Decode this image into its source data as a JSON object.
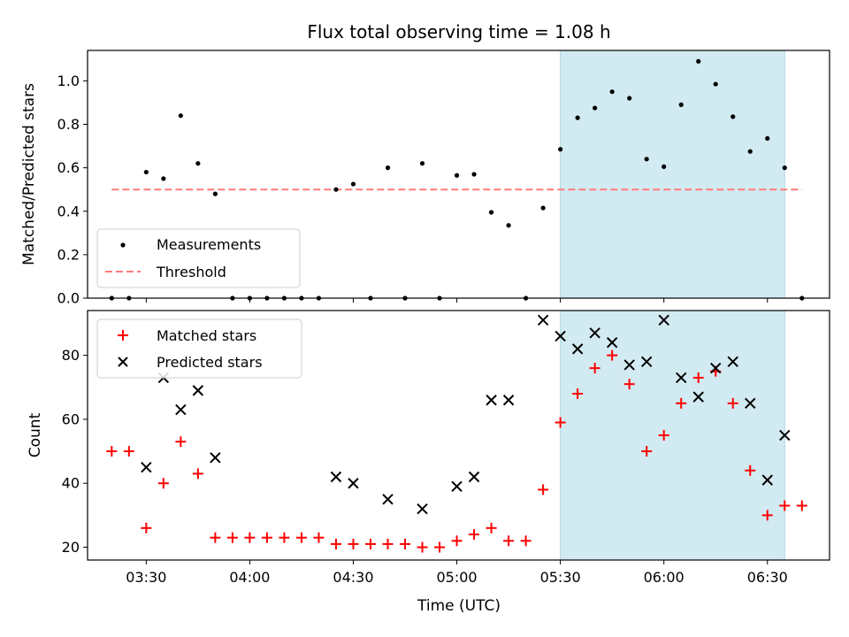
{
  "chart_data": [
    {
      "type": "scatter",
      "title": "Flux total observing time = 1.08 h",
      "xlabel": "",
      "ylabel": "Matched/Predicted stars",
      "xlim": [
        "03:13",
        "06:48"
      ],
      "ylim": [
        0,
        1.14
      ],
      "yticks": [
        "0.0",
        "0.2",
        "0.4",
        "0.6",
        "0.8",
        "1.0"
      ],
      "grid": false,
      "legend_position": "lower-left",
      "highlight_span": {
        "start": "05:30",
        "end": "06:35",
        "color": "#add8e6"
      },
      "threshold": {
        "name": "Threshold",
        "value": 0.5,
        "start": "03:20",
        "end": "06:40",
        "color": "#ff7b7b"
      },
      "series": [
        {
          "name": "Measurements",
          "color": "#000000",
          "marker": "dot",
          "x": [
            "03:20",
            "03:25",
            "03:30",
            "03:35",
            "03:40",
            "03:45",
            "03:50",
            "03:55",
            "04:00",
            "04:05",
            "04:10",
            "04:15",
            "04:20",
            "04:25",
            "04:30",
            "04:35",
            "04:40",
            "04:45",
            "04:50",
            "04:55",
            "05:00",
            "05:05",
            "05:10",
            "05:15",
            "05:20",
            "05:25",
            "05:30",
            "05:35",
            "05:40",
            "05:45",
            "05:50",
            "05:55",
            "06:00",
            "06:05",
            "06:10",
            "06:15",
            "06:20",
            "06:25",
            "06:30",
            "06:35",
            "06:40"
          ],
          "y": [
            0.0,
            0.0,
            0.58,
            0.55,
            0.84,
            0.62,
            0.48,
            0.0,
            0.0,
            0.0,
            0.0,
            0.0,
            0.0,
            0.5,
            0.525,
            0.0,
            0.6,
            0.0,
            0.62,
            0.0,
            0.565,
            0.57,
            0.395,
            0.335,
            0.0,
            0.415,
            0.685,
            0.83,
            0.875,
            0.95,
            0.92,
            0.64,
            0.605,
            0.89,
            1.09,
            0.985,
            0.835,
            0.675,
            0.735,
            0.6,
            0.0
          ]
        }
      ]
    },
    {
      "type": "scatter",
      "xlabel": "Time (UTC)",
      "ylabel": "Count",
      "xlim": [
        "03:13",
        "06:48"
      ],
      "ylim": [
        16,
        94
      ],
      "xticks": [
        "03:30",
        "04:00",
        "04:30",
        "05:00",
        "05:30",
        "06:00",
        "06:30"
      ],
      "yticks": [
        "20",
        "40",
        "60",
        "80"
      ],
      "grid": false,
      "legend_position": "upper-left",
      "highlight_span": {
        "start": "05:30",
        "end": "06:35",
        "color": "#add8e6"
      },
      "series": [
        {
          "name": "Matched stars",
          "color": "#ff0000",
          "marker": "plus",
          "x": [
            "03:20",
            "03:25",
            "03:30",
            "03:35",
            "03:40",
            "03:45",
            "03:50",
            "03:55",
            "04:00",
            "04:05",
            "04:10",
            "04:15",
            "04:20",
            "04:25",
            "04:30",
            "04:35",
            "04:40",
            "04:45",
            "04:50",
            "04:55",
            "05:00",
            "05:05",
            "05:10",
            "05:15",
            "05:20",
            "05:25",
            "05:30",
            "05:35",
            "05:40",
            "05:45",
            "05:50",
            "05:55",
            "06:00",
            "06:05",
            "06:10",
            "06:15",
            "06:20",
            "06:25",
            "06:30",
            "06:35",
            "06:40"
          ],
          "y": [
            50,
            50,
            26,
            40,
            53,
            43,
            23,
            23,
            23,
            23,
            23,
            23,
            23,
            21,
            21,
            21,
            21,
            21,
            20,
            20,
            22,
            24,
            26,
            22,
            22,
            38,
            59,
            68,
            76,
            80,
            71,
            50,
            55,
            65,
            73,
            75,
            65,
            44,
            30,
            33,
            33
          ]
        },
        {
          "name": "Predicted stars",
          "color": "#000000",
          "marker": "x",
          "x": [
            "03:30",
            "03:35",
            "03:40",
            "03:45",
            "03:50",
            "04:25",
            "04:30",
            "04:40",
            "04:50",
            "05:00",
            "05:05",
            "05:10",
            "05:15",
            "05:25",
            "05:30",
            "05:35",
            "05:40",
            "05:45",
            "05:50",
            "05:55",
            "06:00",
            "06:05",
            "06:10",
            "06:15",
            "06:20",
            "06:25",
            "06:30",
            "06:35"
          ],
          "y": [
            45,
            73,
            63,
            69,
            48,
            42,
            40,
            35,
            32,
            39,
            42,
            66,
            66,
            91,
            86,
            82,
            87,
            84,
            77,
            78,
            91,
            73,
            67,
            76,
            78,
            65,
            41,
            55
          ]
        }
      ]
    }
  ]
}
